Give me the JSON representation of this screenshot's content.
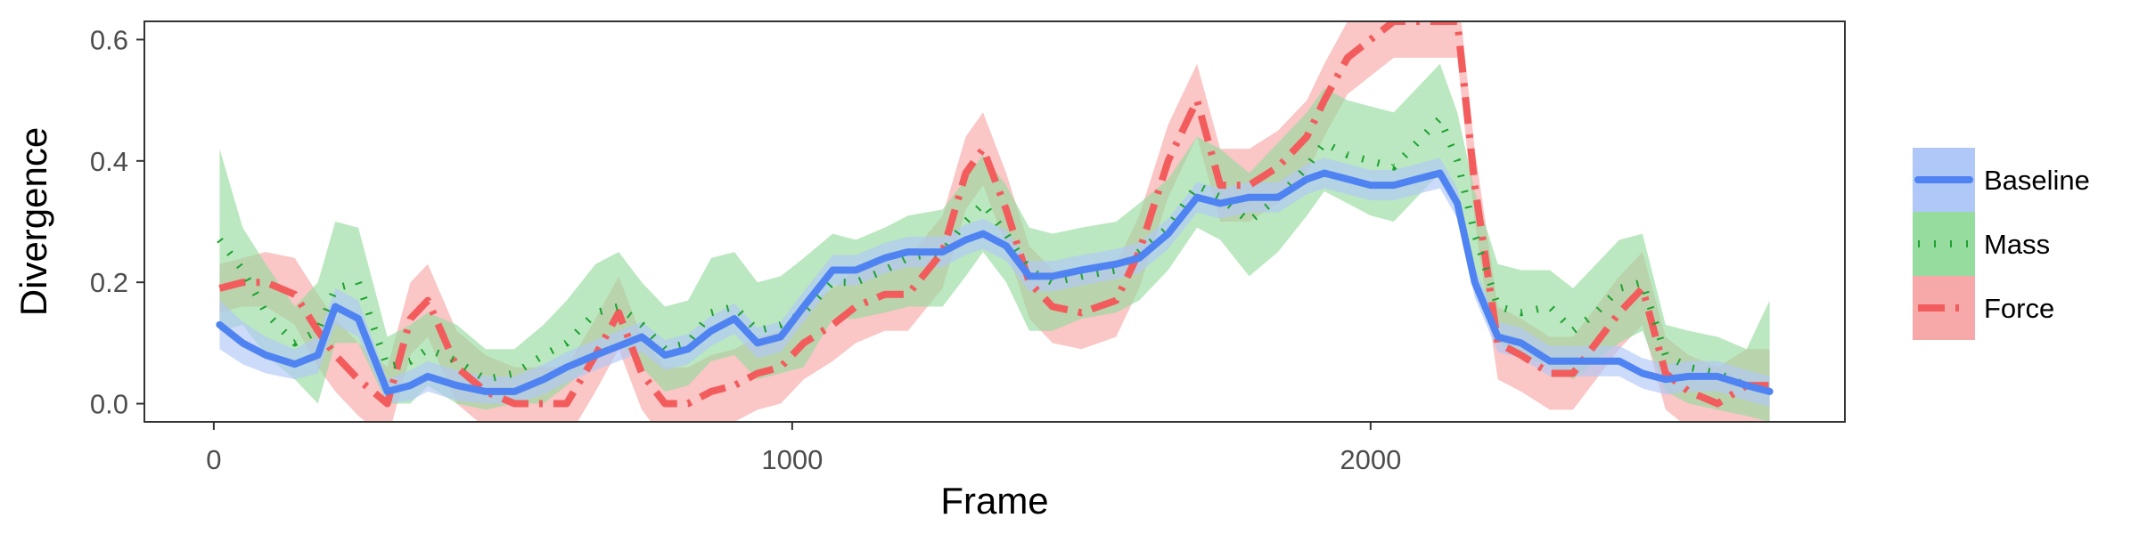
{
  "chart_data": {
    "type": "line",
    "xlabel": "Frame",
    "ylabel": "Divergence",
    "xlim": [
      -120,
      2820
    ],
    "ylim": [
      -0.03,
      0.63
    ],
    "xticks": [
      0,
      1000,
      2000
    ],
    "yticks": [
      0.0,
      0.2,
      0.4,
      0.6
    ],
    "xtick_labels": [
      "0",
      "1000",
      "2000"
    ],
    "ytick_labels": [
      "0.0",
      "0.2",
      "0.4",
      "0.6"
    ],
    "grid": false,
    "legend_position": "right",
    "legend": [
      "Baseline",
      "Mass",
      "Force"
    ],
    "series": [
      {
        "name": "Baseline",
        "color": "#4f83f2",
        "band_color": "#b0c8f8",
        "dash": "solid",
        "x": [
          10,
          50,
          90,
          140,
          180,
          210,
          250,
          300,
          340,
          370,
          420,
          470,
          520,
          570,
          610,
          660,
          700,
          740,
          780,
          820,
          860,
          900,
          940,
          980,
          1020,
          1070,
          1110,
          1160,
          1200,
          1260,
          1300,
          1330,
          1370,
          1410,
          1450,
          1500,
          1560,
          1600,
          1650,
          1700,
          1740,
          1790,
          1840,
          1890,
          1920,
          1960,
          2000,
          2040,
          2080,
          2120,
          2150,
          2180,
          2220,
          2260,
          2310,
          2350,
          2390,
          2430,
          2470,
          2510,
          2550,
          2600,
          2650,
          2690
        ],
        "values": [
          0.13,
          0.1,
          0.08,
          0.065,
          0.08,
          0.16,
          0.14,
          0.02,
          0.03,
          0.045,
          0.03,
          0.02,
          0.02,
          0.04,
          0.06,
          0.08,
          0.095,
          0.11,
          0.08,
          0.09,
          0.12,
          0.14,
          0.1,
          0.11,
          0.16,
          0.22,
          0.22,
          0.24,
          0.25,
          0.25,
          0.27,
          0.28,
          0.26,
          0.21,
          0.21,
          0.22,
          0.23,
          0.24,
          0.28,
          0.34,
          0.33,
          0.34,
          0.34,
          0.37,
          0.38,
          0.37,
          0.36,
          0.36,
          0.37,
          0.38,
          0.33,
          0.2,
          0.11,
          0.1,
          0.07,
          0.07,
          0.07,
          0.07,
          0.05,
          0.04,
          0.045,
          0.045,
          0.03,
          0.02
        ],
        "lower": [
          0.09,
          0.065,
          0.05,
          0.04,
          0.05,
          0.13,
          0.11,
          0.0,
          0.005,
          0.02,
          0.005,
          0.0,
          0.0,
          0.015,
          0.035,
          0.055,
          0.07,
          0.085,
          0.055,
          0.065,
          0.095,
          0.115,
          0.075,
          0.085,
          0.135,
          0.195,
          0.195,
          0.215,
          0.225,
          0.225,
          0.245,
          0.255,
          0.235,
          0.185,
          0.185,
          0.195,
          0.205,
          0.215,
          0.255,
          0.315,
          0.305,
          0.315,
          0.315,
          0.345,
          0.355,
          0.345,
          0.335,
          0.335,
          0.345,
          0.355,
          0.305,
          0.175,
          0.085,
          0.075,
          0.045,
          0.045,
          0.045,
          0.045,
          0.025,
          0.015,
          0.02,
          0.02,
          0.005,
          -0.005
        ],
        "upper": [
          0.17,
          0.135,
          0.11,
          0.09,
          0.11,
          0.19,
          0.17,
          0.04,
          0.055,
          0.07,
          0.055,
          0.045,
          0.045,
          0.065,
          0.085,
          0.105,
          0.12,
          0.135,
          0.105,
          0.115,
          0.145,
          0.165,
          0.125,
          0.135,
          0.185,
          0.245,
          0.245,
          0.265,
          0.275,
          0.275,
          0.295,
          0.305,
          0.285,
          0.235,
          0.235,
          0.245,
          0.255,
          0.265,
          0.305,
          0.365,
          0.355,
          0.365,
          0.365,
          0.395,
          0.405,
          0.395,
          0.385,
          0.385,
          0.395,
          0.405,
          0.355,
          0.225,
          0.135,
          0.125,
          0.095,
          0.095,
          0.095,
          0.095,
          0.075,
          0.065,
          0.07,
          0.07,
          0.055,
          0.045
        ]
      },
      {
        "name": "Mass",
        "color": "#1ea131",
        "band_color": "#96dc9e",
        "dash": "dotted",
        "x": [
          10,
          50,
          90,
          140,
          180,
          210,
          250,
          300,
          340,
          370,
          420,
          470,
          520,
          570,
          610,
          660,
          700,
          740,
          780,
          820,
          860,
          900,
          940,
          980,
          1020,
          1070,
          1110,
          1160,
          1200,
          1260,
          1300,
          1330,
          1370,
          1410,
          1450,
          1500,
          1560,
          1600,
          1650,
          1700,
          1740,
          1790,
          1840,
          1890,
          1920,
          1960,
          2000,
          2040,
          2080,
          2120,
          2150,
          2180,
          2220,
          2260,
          2310,
          2350,
          2390,
          2430,
          2470,
          2510,
          2550,
          2600,
          2650,
          2690
        ],
        "values": [
          0.27,
          0.22,
          0.15,
          0.1,
          0.12,
          0.19,
          0.2,
          0.06,
          0.07,
          0.09,
          0.07,
          0.04,
          0.05,
          0.08,
          0.1,
          0.15,
          0.16,
          0.13,
          0.09,
          0.1,
          0.15,
          0.16,
          0.12,
          0.13,
          0.15,
          0.2,
          0.2,
          0.22,
          0.24,
          0.25,
          0.3,
          0.33,
          0.28,
          0.22,
          0.2,
          0.21,
          0.22,
          0.25,
          0.29,
          0.36,
          0.34,
          0.3,
          0.34,
          0.39,
          0.43,
          0.41,
          0.4,
          0.39,
          0.43,
          0.47,
          0.4,
          0.28,
          0.16,
          0.15,
          0.16,
          0.12,
          0.15,
          0.19,
          0.2,
          0.08,
          0.06,
          0.05,
          0.03,
          0.02
        ],
        "lower": [
          0.12,
          0.13,
          0.08,
          0.04,
          0.0,
          0.1,
          0.1,
          0.0,
          0.0,
          0.03,
          0.0,
          -0.01,
          0.0,
          0.0,
          0.03,
          0.07,
          0.1,
          0.06,
          0.02,
          0.03,
          0.07,
          0.08,
          0.04,
          0.05,
          0.06,
          0.14,
          0.14,
          0.15,
          0.16,
          0.16,
          0.21,
          0.25,
          0.2,
          0.12,
          0.12,
          0.14,
          0.15,
          0.17,
          0.22,
          0.29,
          0.27,
          0.21,
          0.25,
          0.31,
          0.35,
          0.33,
          0.31,
          0.3,
          0.34,
          0.38,
          0.32,
          0.2,
          0.1,
          0.08,
          0.06,
          0.04,
          0.07,
          0.1,
          0.12,
          0.02,
          0.0,
          -0.01,
          -0.02,
          -0.03
        ],
        "upper": [
          0.42,
          0.29,
          0.23,
          0.16,
          0.2,
          0.3,
          0.29,
          0.11,
          0.13,
          0.15,
          0.13,
          0.09,
          0.09,
          0.13,
          0.17,
          0.23,
          0.25,
          0.2,
          0.16,
          0.17,
          0.24,
          0.25,
          0.2,
          0.21,
          0.24,
          0.28,
          0.27,
          0.29,
          0.31,
          0.32,
          0.37,
          0.41,
          0.36,
          0.29,
          0.28,
          0.29,
          0.3,
          0.33,
          0.37,
          0.44,
          0.42,
          0.38,
          0.43,
          0.48,
          0.52,
          0.5,
          0.49,
          0.48,
          0.52,
          0.56,
          0.48,
          0.35,
          0.23,
          0.22,
          0.22,
          0.19,
          0.23,
          0.27,
          0.28,
          0.13,
          0.12,
          0.11,
          0.09,
          0.17
        ]
      },
      {
        "name": "Force",
        "color": "#f25c5c",
        "band_color": "#f7a8a8",
        "dash": "dotdash",
        "x": [
          10,
          50,
          90,
          140,
          180,
          210,
          250,
          300,
          340,
          370,
          420,
          470,
          520,
          570,
          610,
          660,
          700,
          740,
          780,
          820,
          860,
          900,
          940,
          980,
          1020,
          1070,
          1110,
          1160,
          1200,
          1260,
          1300,
          1330,
          1370,
          1410,
          1450,
          1500,
          1560,
          1600,
          1650,
          1700,
          1740,
          1790,
          1840,
          1890,
          1920,
          1960,
          2000,
          2040,
          2080,
          2120,
          2150,
          2180,
          2220,
          2260,
          2310,
          2350,
          2390,
          2430,
          2470,
          2510,
          2550,
          2600,
          2650,
          2690
        ],
        "values": [
          0.19,
          0.2,
          0.2,
          0.18,
          0.12,
          0.08,
          0.04,
          0.0,
          0.14,
          0.17,
          0.06,
          0.02,
          0.0,
          0.0,
          0.0,
          0.08,
          0.15,
          0.05,
          0.0,
          0.0,
          0.02,
          0.03,
          0.05,
          0.06,
          0.1,
          0.13,
          0.16,
          0.18,
          0.18,
          0.25,
          0.38,
          0.42,
          0.32,
          0.2,
          0.16,
          0.15,
          0.17,
          0.25,
          0.4,
          0.5,
          0.36,
          0.36,
          0.39,
          0.44,
          0.5,
          0.57,
          0.6,
          0.63,
          0.63,
          0.63,
          0.63,
          0.36,
          0.1,
          0.08,
          0.05,
          0.05,
          0.1,
          0.15,
          0.19,
          0.05,
          0.02,
          0.0,
          0.03,
          0.03
        ],
        "lower": [
          0.15,
          0.16,
          0.16,
          0.13,
          0.06,
          0.02,
          -0.02,
          -0.06,
          0.08,
          0.11,
          0.0,
          -0.04,
          -0.06,
          -0.06,
          -0.06,
          0.02,
          0.09,
          -0.01,
          -0.06,
          -0.06,
          -0.04,
          -0.03,
          -0.01,
          0.0,
          0.04,
          0.07,
          0.1,
          0.12,
          0.12,
          0.19,
          0.32,
          0.36,
          0.26,
          0.14,
          0.1,
          0.09,
          0.11,
          0.19,
          0.34,
          0.44,
          0.3,
          0.3,
          0.33,
          0.38,
          0.44,
          0.51,
          0.54,
          0.57,
          0.57,
          0.57,
          0.57,
          0.3,
          0.04,
          0.02,
          -0.01,
          -0.01,
          0.04,
          0.09,
          0.13,
          -0.01,
          -0.04,
          -0.06,
          -0.03,
          -0.03
        ],
        "upper": [
          0.23,
          0.24,
          0.25,
          0.24,
          0.18,
          0.14,
          0.1,
          0.06,
          0.2,
          0.23,
          0.12,
          0.08,
          0.06,
          0.06,
          0.06,
          0.14,
          0.21,
          0.11,
          0.06,
          0.06,
          0.08,
          0.09,
          0.11,
          0.12,
          0.16,
          0.19,
          0.22,
          0.24,
          0.24,
          0.31,
          0.44,
          0.48,
          0.38,
          0.26,
          0.22,
          0.21,
          0.23,
          0.31,
          0.46,
          0.56,
          0.42,
          0.42,
          0.45,
          0.5,
          0.56,
          0.63,
          0.66,
          0.69,
          0.69,
          0.69,
          0.69,
          0.42,
          0.16,
          0.14,
          0.11,
          0.11,
          0.16,
          0.21,
          0.25,
          0.11,
          0.08,
          0.06,
          0.09,
          0.09
        ]
      }
    ]
  }
}
